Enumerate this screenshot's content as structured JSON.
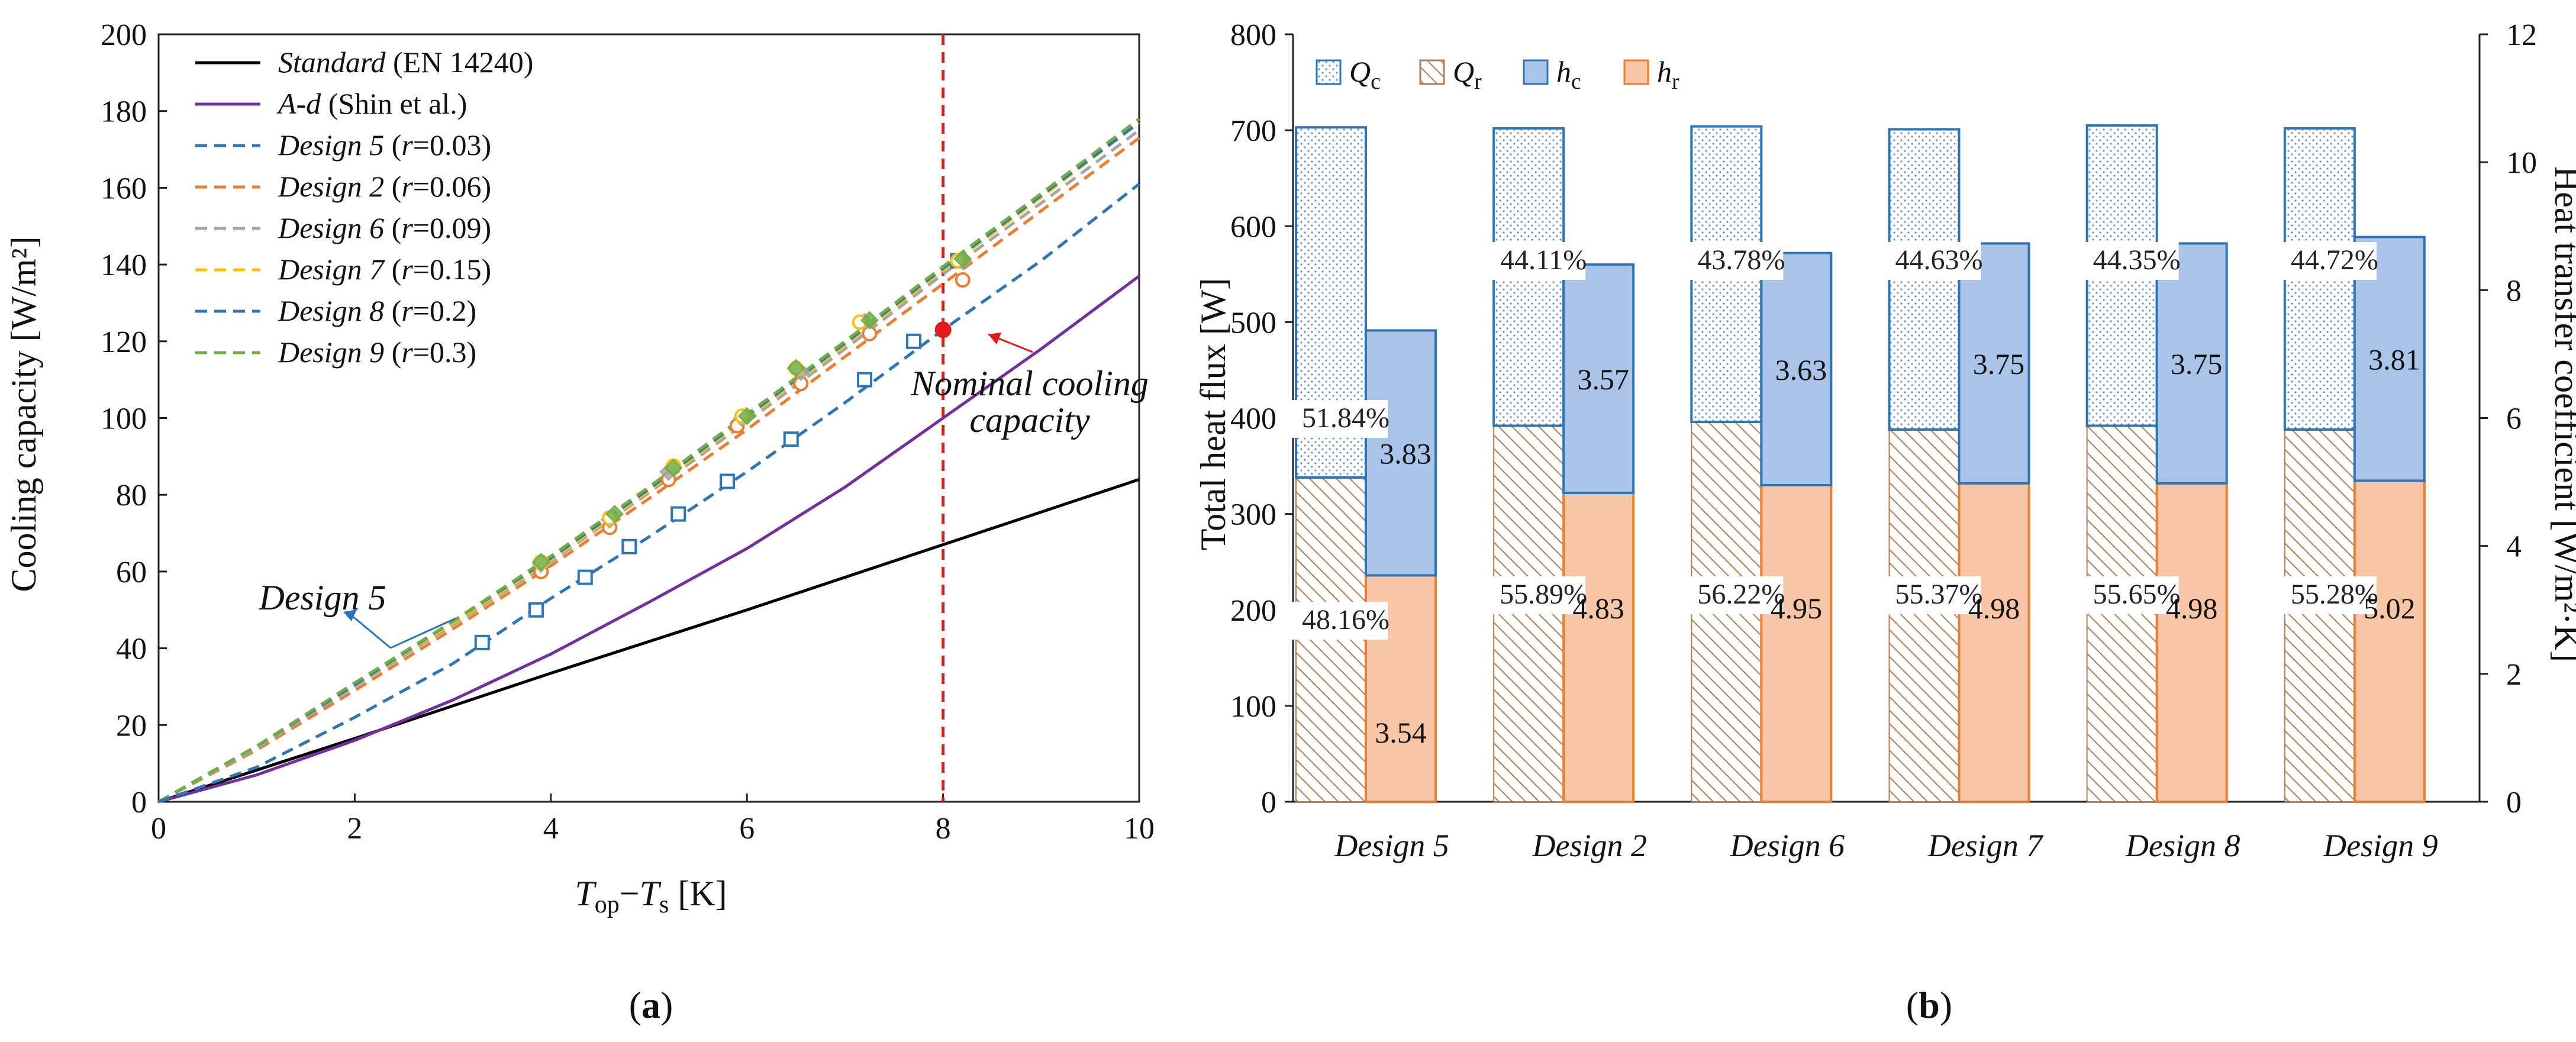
{
  "colors": {
    "standard": "#000000",
    "ad": "#7030a0",
    "d5": "#2e75b6",
    "d2": "#ed7d31",
    "d6": "#a5a5a5",
    "d7": "#ffc000",
    "d8": "#2e75b6",
    "d9": "#70ad47",
    "nominal": "#e31a1c",
    "blue_fill": "#a9c4e8",
    "blue_edge": "#2e75b6",
    "orange_fill": "#f9c6a5",
    "orange_edge": "#ed7d31",
    "hatch_brown": "#b07d55",
    "dot_blue": "#6a8fbf"
  },
  "chart_data": [
    {
      "type": "line",
      "panel_label": "(a)",
      "panel_letter": "a",
      "xlabel": {
        "main": "T",
        "sub1": "op",
        "dash": "−",
        "main2": "T",
        "sub2": "s",
        "unit": " [K]"
      },
      "ylabel": "Cooling capacity [W/m²]",
      "xlim": [
        0,
        10
      ],
      "ylim": [
        0,
        200
      ],
      "xticks": [
        0,
        2,
        4,
        6,
        8,
        10
      ],
      "yticks": [
        0,
        20,
        40,
        60,
        80,
        100,
        120,
        140,
        160,
        180,
        200
      ],
      "series": [
        {
          "key": "standard",
          "name_italic": "Standard",
          "name_rest": " (EN 14240)",
          "style": "solid",
          "x": [
            0,
            2,
            4,
            6,
            8,
            10
          ],
          "y": [
            0,
            16.5,
            33.5,
            50,
            67,
            84
          ]
        },
        {
          "key": "ad",
          "name_italic": "A-d",
          "name_rest": " (Shin et al.)",
          "style": "solid",
          "x": [
            0,
            1,
            2,
            3,
            4,
            5,
            6,
            7,
            8,
            9,
            10
          ],
          "y": [
            0,
            7,
            16,
            26.5,
            38.5,
            52,
            66,
            82,
            100,
            118,
            137
          ]
        },
        {
          "key": "d8",
          "name_italic": "Design 5",
          "name_rest": " (",
          "r_italic": "r",
          "r_value": "=0.03)",
          "style": "dashed",
          "x": [
            0,
            1,
            2,
            3,
            4,
            5,
            6,
            7,
            8,
            9,
            10
          ],
          "y": [
            0,
            9,
            22,
            36,
            53,
            69,
            86,
            104,
            123,
            141,
            161
          ]
        },
        {
          "key": "d2",
          "name_italic": "Design 2",
          "name_rest": " (",
          "r_italic": "r",
          "r_value": "=0.06)",
          "style": "dashed",
          "x": [
            0,
            1,
            2,
            3,
            4,
            5,
            6,
            7,
            8,
            9,
            10
          ],
          "y": [
            0,
            13.5,
            29,
            45,
            61.5,
            79,
            97,
            116,
            135,
            154,
            173
          ]
        },
        {
          "key": "d6",
          "name_italic": "Design 6",
          "name_rest": " (",
          "r_italic": "r",
          "r_value": "=0.09)",
          "style": "dashed",
          "x": [
            0,
            1,
            2,
            3,
            4,
            5,
            6,
            7,
            8,
            9,
            10
          ],
          "y": [
            0,
            14,
            30,
            46,
            62.5,
            80.5,
            99,
            118,
            137.5,
            156,
            175
          ]
        },
        {
          "key": "d7",
          "name_italic": "Design 7",
          "name_rest": " (",
          "r_italic": "r",
          "r_value": "=0.15)",
          "style": "dashed",
          "x": [
            0,
            1,
            2,
            3,
            4,
            5,
            6,
            7,
            8,
            9,
            10
          ],
          "y": [
            0,
            14.5,
            30.5,
            46.5,
            63,
            81,
            100,
            119,
            138.5,
            157.5,
            177
          ]
        },
        {
          "key": "d8b",
          "name_italic": "Design 8",
          "name_rest": " (",
          "r_italic": "r",
          "r_value": "=0.2)",
          "style": "dashed",
          "x": [
            0,
            1,
            2,
            3,
            4,
            5,
            6,
            7,
            8,
            9,
            10
          ],
          "y": [
            0,
            14.5,
            30.5,
            47,
            63.5,
            81.5,
            100.5,
            119.5,
            139,
            158,
            177
          ]
        },
        {
          "key": "d9",
          "name_italic": "Design 9",
          "name_rest": " (",
          "r_italic": "r",
          "r_value": "=0.3)",
          "style": "dashed",
          "x": [
            0,
            1,
            2,
            3,
            4,
            5,
            6,
            7,
            8,
            9,
            10
          ],
          "y": [
            0,
            14.5,
            31,
            47,
            64,
            82,
            101,
            120,
            139.5,
            158.5,
            178
          ]
        }
      ],
      "markers": [
        {
          "key": "d8",
          "shape": "square",
          "x": [
            3.3,
            3.85,
            4.35,
            4.8,
            5.3,
            5.8,
            6.45,
            7.2,
            7.7,
            8.15
          ],
          "y": [
            41.5,
            50,
            58.5,
            66.5,
            75,
            83.5,
            94.5,
            110,
            120,
            141
          ]
        },
        {
          "key": "d2",
          "shape": "circle",
          "x": [
            3.9,
            4.6,
            5.2,
            5.9,
            6.55,
            7.25,
            8.2
          ],
          "y": [
            60,
            71.5,
            84,
            98,
            109,
            122,
            136
          ]
        },
        {
          "key": "d6",
          "shape": "diamond",
          "x": [
            3.9,
            4.6,
            5.2,
            5.95,
            6.55,
            7.2,
            8.2
          ],
          "y": [
            62,
            73.5,
            86,
            100,
            112,
            125,
            141
          ]
        },
        {
          "key": "d7",
          "shape": "circle",
          "x": [
            3.9,
            4.6,
            5.25,
            5.95,
            6.5,
            7.15,
            8.15
          ],
          "y": [
            62.5,
            74,
            87.5,
            100.5,
            113,
            125,
            141
          ]
        },
        {
          "key": "d9",
          "shape": "diamond",
          "x": [
            3.9,
            4.65,
            5.25,
            6.0,
            6.5,
            7.25,
            8.2
          ],
          "y": [
            62.5,
            75,
            87,
            100.5,
            113,
            125.5,
            141.5
          ]
        }
      ],
      "nominal_line_x": 8,
      "nominal_point": {
        "x": 8,
        "y": 123
      },
      "annotations": [
        {
          "id": "nominal",
          "lines": [
            "Nominal cooling",
            "capacity"
          ]
        },
        {
          "id": "design5",
          "lines": [
            "Design 5"
          ]
        }
      ]
    },
    {
      "type": "bar",
      "panel_label": "(b)",
      "panel_letter": "b",
      "categories": [
        "Design 5",
        "Design 2",
        "Design 6",
        "Design 7",
        "Design 8",
        "Design 9"
      ],
      "ylabel": "Total heat flux [W]",
      "y2label": "Heat transfer coefficient [W/m²·K]",
      "ylim": [
        0,
        800
      ],
      "y2lim": [
        0,
        12
      ],
      "yticks": [
        0,
        100,
        200,
        300,
        400,
        500,
        600,
        700,
        800
      ],
      "y2ticks": [
        0,
        2,
        4,
        6,
        8,
        10,
        12
      ],
      "legend": [
        {
          "key": "Qc",
          "main": "Q",
          "sub": "c"
        },
        {
          "key": "Qr",
          "main": "Q",
          "sub": "r"
        },
        {
          "key": "hc",
          "main": "h",
          "sub": "c"
        },
        {
          "key": "hr",
          "main": "h",
          "sub": "r"
        }
      ],
      "Q_r": [
        338,
        392,
        396,
        388,
        392,
        388
      ],
      "Q_total": [
        703,
        702,
        704,
        701,
        705,
        702
      ],
      "Q_r_pct": [
        "48.16%",
        "55.89%",
        "56.22%",
        "55.37%",
        "55.65%",
        "55.28%"
      ],
      "Q_c_pct": [
        "51.84%",
        "44.11%",
        "43.78%",
        "44.63%",
        "44.35%",
        "44.72%"
      ],
      "h_r": [
        3.54,
        4.83,
        4.95,
        4.98,
        4.98,
        5.02
      ],
      "h_c": [
        3.83,
        3.57,
        3.63,
        3.75,
        3.75,
        3.81
      ],
      "h_r_label": [
        "3.54",
        "4.83",
        "4.95",
        "4.98",
        "4.98",
        "5.02"
      ],
      "h_c_label": [
        "3.83",
        "3.57",
        "3.63",
        "3.75",
        "3.75",
        "3.81"
      ]
    }
  ]
}
